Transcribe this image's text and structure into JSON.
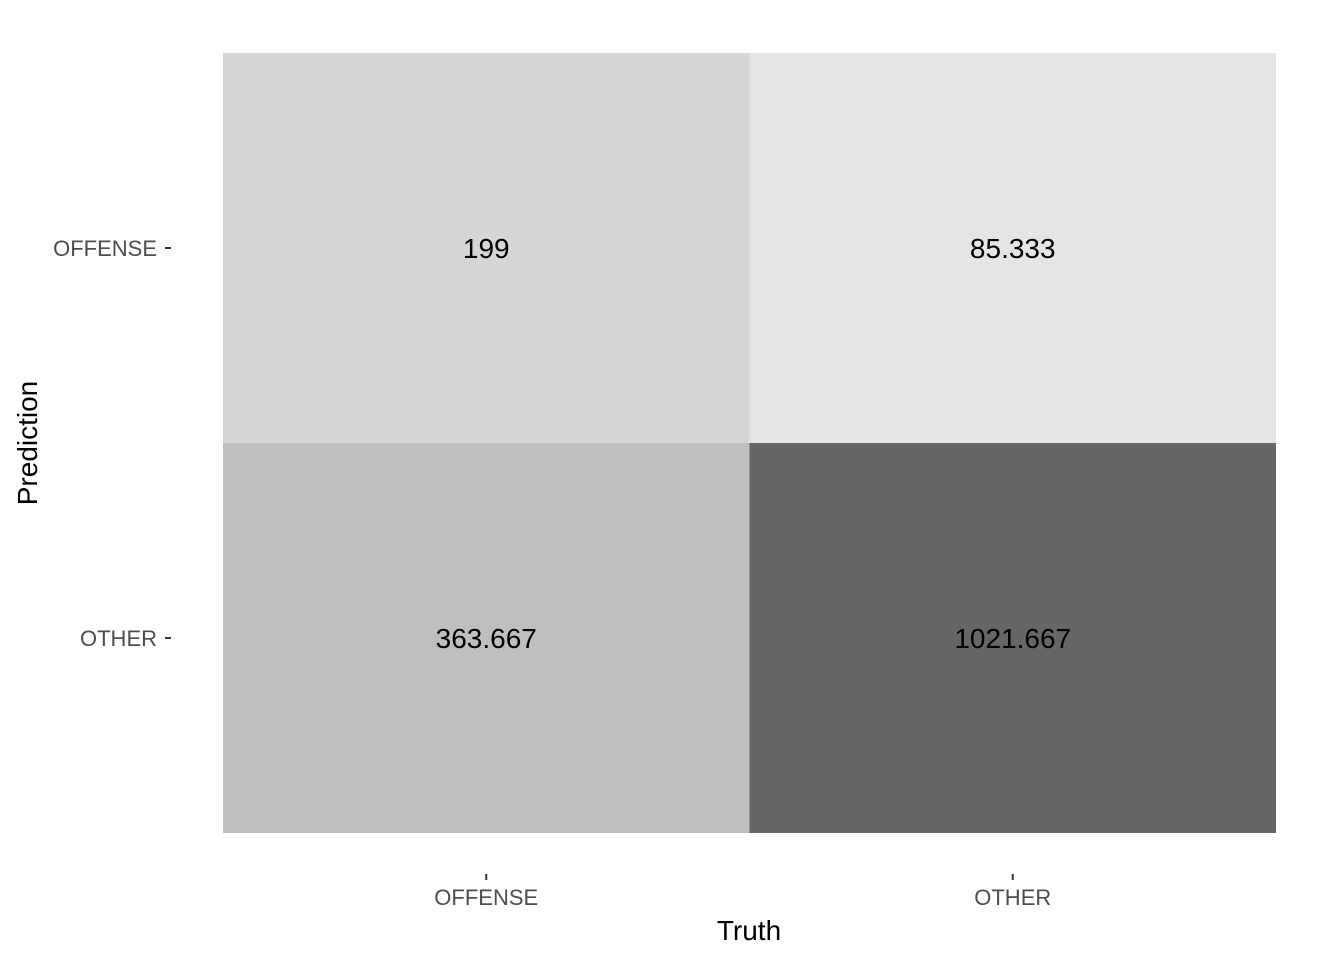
{
  "chart_data": {
    "type": "heatmap",
    "title": "",
    "xlabel": "Truth",
    "ylabel": "Prediction",
    "x_categories": [
      "OFFENSE",
      "OTHER"
    ],
    "y_categories": [
      "OFFENSE",
      "OTHER"
    ],
    "cells": [
      {
        "truth": "OFFENSE",
        "prediction": "OFFENSE",
        "value": 199,
        "label": "199"
      },
      {
        "truth": "OTHER",
        "prediction": "OFFENSE",
        "value": 85.333,
        "label": "85.333"
      },
      {
        "truth": "OFFENSE",
        "prediction": "OTHER",
        "value": 363.667,
        "label": "363.667"
      },
      {
        "truth": "OTHER",
        "prediction": "OTHER",
        "value": 1021.667,
        "label": "1021.667"
      }
    ],
    "color_scale": {
      "low": "#e5e5e5",
      "high": "#666666"
    },
    "legend": "none",
    "grid": false
  }
}
